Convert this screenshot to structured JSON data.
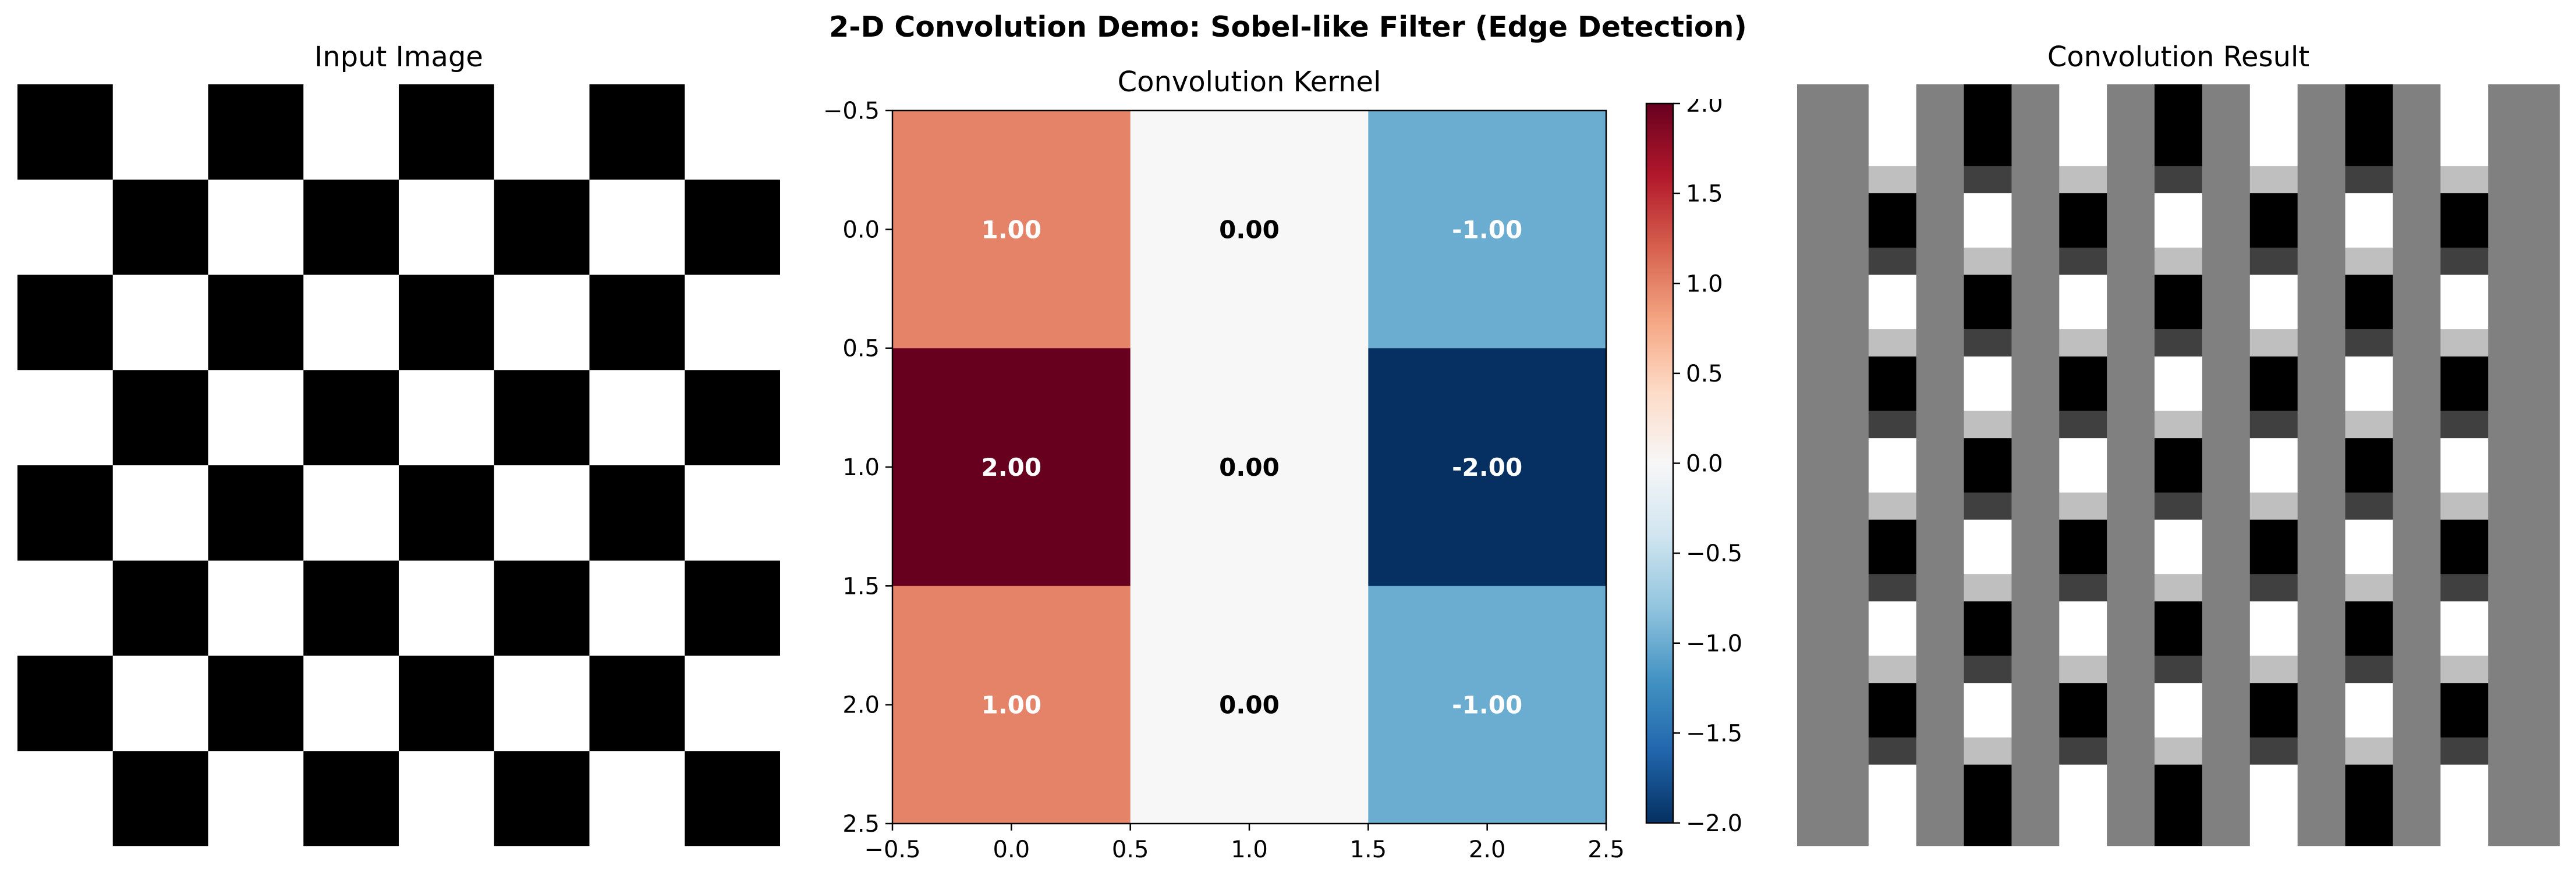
{
  "figure": {
    "suptitle": "2-D Convolution Demo: Sobel-like Filter (Edge Detection)"
  },
  "chart_data": [
    {
      "type": "heatmap",
      "title": "Input Image",
      "colormap": "gray",
      "axes_visible": false,
      "vmin": 0,
      "vmax": 1,
      "values": [
        [
          0,
          1,
          0,
          1,
          0,
          1,
          0,
          1
        ],
        [
          1,
          0,
          1,
          0,
          1,
          0,
          1,
          0
        ],
        [
          0,
          1,
          0,
          1,
          0,
          1,
          0,
          1
        ],
        [
          1,
          0,
          1,
          0,
          1,
          0,
          1,
          0
        ],
        [
          0,
          1,
          0,
          1,
          0,
          1,
          0,
          1
        ],
        [
          1,
          0,
          1,
          0,
          1,
          0,
          1,
          0
        ],
        [
          0,
          1,
          0,
          1,
          0,
          1,
          0,
          1
        ],
        [
          1,
          0,
          1,
          0,
          1,
          0,
          1,
          0
        ]
      ]
    },
    {
      "type": "heatmap",
      "title": "Convolution Kernel",
      "colormap": "RdBu_r",
      "vmin": -2,
      "vmax": 2,
      "values": [
        [
          1,
          0,
          -1
        ],
        [
          2,
          0,
          -2
        ],
        [
          1,
          0,
          -1
        ]
      ],
      "cell_labels": [
        [
          "1.00",
          "0.00",
          "-1.00"
        ],
        [
          "2.00",
          "0.00",
          "-2.00"
        ],
        [
          "1.00",
          "0.00",
          "-1.00"
        ]
      ],
      "xlim": [
        -0.5,
        2.5
      ],
      "ylim": [
        2.5,
        -0.5
      ],
      "xticks": [
        "−0.5",
        "0.0",
        "0.5",
        "1.0",
        "1.5",
        "2.0",
        "2.5"
      ],
      "yticks": [
        "−0.5",
        "0.0",
        "0.5",
        "1.0",
        "1.5",
        "2.0",
        "2.5"
      ],
      "colorbar": {
        "range": [
          -2,
          2
        ],
        "ticks": [
          "2.0",
          "1.5",
          "1.0",
          "0.5",
          "0.0",
          "−0.5",
          "−1.0",
          "−1.5",
          "−2.0"
        ]
      }
    },
    {
      "type": "heatmap",
      "title": "Convolution Result",
      "colormap": "gray",
      "axes_visible": false,
      "row_heights": [
        1.5,
        0.5,
        1,
        0.5,
        1,
        0.5,
        1,
        0.5,
        1,
        0.5,
        1,
        0.5,
        1,
        0.5,
        1,
        0.5,
        1.5
      ],
      "col_widths": [
        1.5,
        1,
        1,
        1,
        1,
        1,
        1,
        1,
        1,
        1,
        1,
        1,
        1,
        1,
        1.5
      ],
      "values": [
        [
          0.5,
          1,
          0.5,
          0,
          0.5,
          1,
          0.5,
          0,
          0.5,
          1,
          0.5,
          0,
          0.5,
          1,
          0.5
        ],
        [
          0.5,
          0.75,
          0.5,
          0.25,
          0.5,
          0.75,
          0.5,
          0.25,
          0.5,
          0.75,
          0.5,
          0.25,
          0.5,
          0.75,
          0.5
        ],
        [
          0.5,
          0,
          0.5,
          1,
          0.5,
          0,
          0.5,
          1,
          0.5,
          0,
          0.5,
          1,
          0.5,
          0,
          0.5
        ],
        [
          0.5,
          0.25,
          0.5,
          0.75,
          0.5,
          0.25,
          0.5,
          0.75,
          0.5,
          0.25,
          0.5,
          0.75,
          0.5,
          0.25,
          0.5
        ],
        [
          0.5,
          1,
          0.5,
          0,
          0.5,
          1,
          0.5,
          0,
          0.5,
          1,
          0.5,
          0,
          0.5,
          1,
          0.5
        ],
        [
          0.5,
          0.75,
          0.5,
          0.25,
          0.5,
          0.75,
          0.5,
          0.25,
          0.5,
          0.75,
          0.5,
          0.25,
          0.5,
          0.75,
          0.5
        ],
        [
          0.5,
          0,
          0.5,
          1,
          0.5,
          0,
          0.5,
          1,
          0.5,
          0,
          0.5,
          1,
          0.5,
          0,
          0.5
        ],
        [
          0.5,
          0.25,
          0.5,
          0.75,
          0.5,
          0.25,
          0.5,
          0.75,
          0.5,
          0.25,
          0.5,
          0.75,
          0.5,
          0.25,
          0.5
        ],
        [
          0.5,
          1,
          0.5,
          0,
          0.5,
          1,
          0.5,
          0,
          0.5,
          1,
          0.5,
          0,
          0.5,
          1,
          0.5
        ],
        [
          0.5,
          0.75,
          0.5,
          0.25,
          0.5,
          0.75,
          0.5,
          0.25,
          0.5,
          0.75,
          0.5,
          0.25,
          0.5,
          0.75,
          0.5
        ],
        [
          0.5,
          0,
          0.5,
          1,
          0.5,
          0,
          0.5,
          1,
          0.5,
          0,
          0.5,
          1,
          0.5,
          0,
          0.5
        ],
        [
          0.5,
          0.25,
          0.5,
          0.75,
          0.5,
          0.25,
          0.5,
          0.75,
          0.5,
          0.25,
          0.5,
          0.75,
          0.5,
          0.25,
          0.5
        ],
        [
          0.5,
          1,
          0.5,
          0,
          0.5,
          1,
          0.5,
          0,
          0.5,
          1,
          0.5,
          0,
          0.5,
          1,
          0.5
        ],
        [
          0.5,
          0.75,
          0.5,
          0.25,
          0.5,
          0.75,
          0.5,
          0.25,
          0.5,
          0.75,
          0.5,
          0.25,
          0.5,
          0.75,
          0.5
        ],
        [
          0.5,
          0,
          0.5,
          1,
          0.5,
          0,
          0.5,
          1,
          0.5,
          0,
          0.5,
          1,
          0.5,
          0,
          0.5
        ],
        [
          0.5,
          0.25,
          0.5,
          0.75,
          0.5,
          0.25,
          0.5,
          0.75,
          0.5,
          0.25,
          0.5,
          0.75,
          0.5,
          0.25,
          0.5
        ],
        [
          0.5,
          1,
          0.5,
          0,
          0.5,
          1,
          0.5,
          0,
          0.5,
          1,
          0.5,
          0,
          0.5,
          1,
          0.5
        ]
      ]
    }
  ]
}
